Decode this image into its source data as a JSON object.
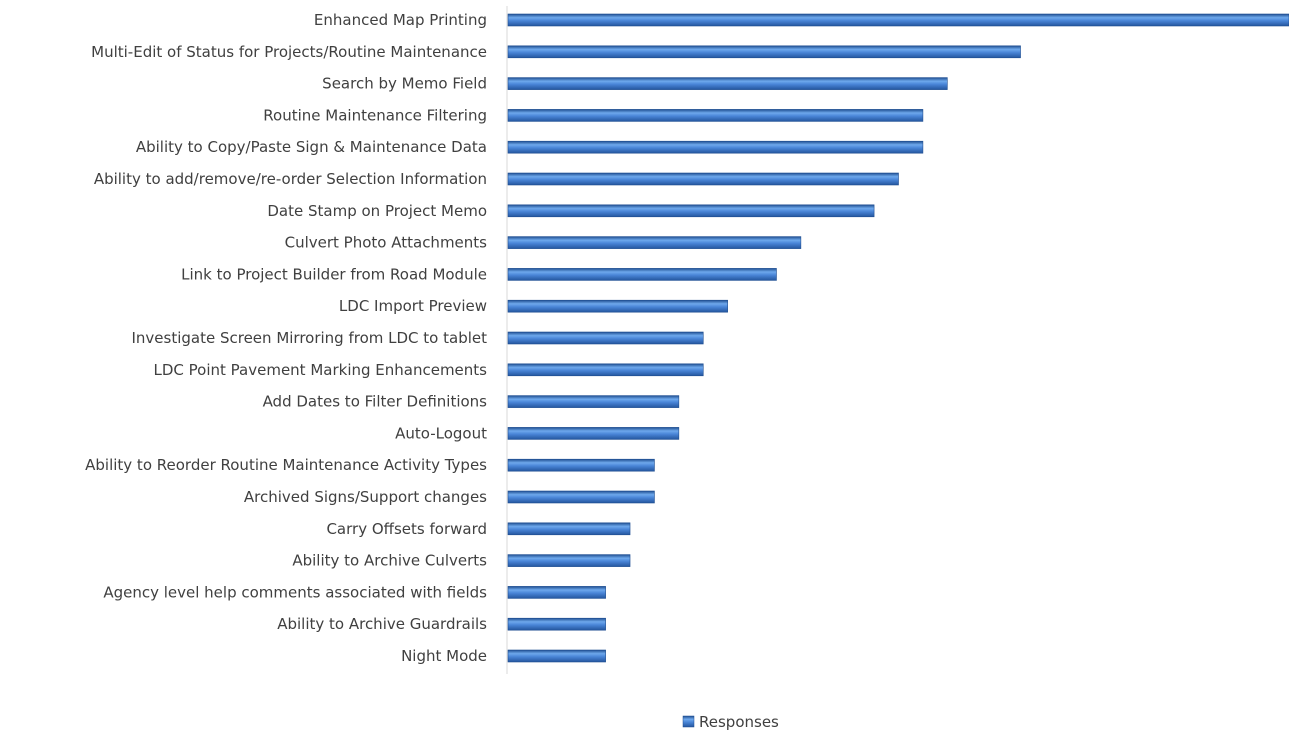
{
  "chart_data": {
    "type": "bar",
    "orientation": "horizontal",
    "categories": [
      "Enhanced Map Printing",
      "Multi-Edit of Status for Projects/Routine Maintenance",
      "Search by Memo Field",
      "Routine Maintenance Filtering ",
      "Ability to Copy/Paste Sign & Maintenance Data",
      "Ability to add/remove/re-order Selection Information ",
      "Date Stamp on Project Memo",
      "Culvert Photo Attachments",
      "Link to Project Builder from Road Module",
      "LDC Import Preview",
      "Investigate Screen Mirroring from LDC to tablet",
      "LDC Point Pavement Marking Enhancements",
      "Add Dates to Filter Definitions",
      "Auto-Logout",
      "Ability to Reorder Routine Maintenance Activity Types",
      "Archived Signs/Support changes",
      "Carry Offsets forward",
      "Ability to Archive Culverts ",
      "Agency level help comments associated with fields",
      "Ability to Archive Guardrails",
      "Night Mode"
    ],
    "series": [
      {
        "name": "Responses",
        "color": "#4a86d8",
        "values": [
          32,
          21,
          18,
          17,
          17,
          16,
          15,
          12,
          11,
          9,
          8,
          8,
          7,
          7,
          6,
          6,
          5,
          5,
          4,
          4,
          4
        ]
      }
    ],
    "title": "",
    "xlabel": "",
    "ylabel": "",
    "xlim": [
      0,
      32
    ],
    "grid": false,
    "legend": "bottom"
  }
}
